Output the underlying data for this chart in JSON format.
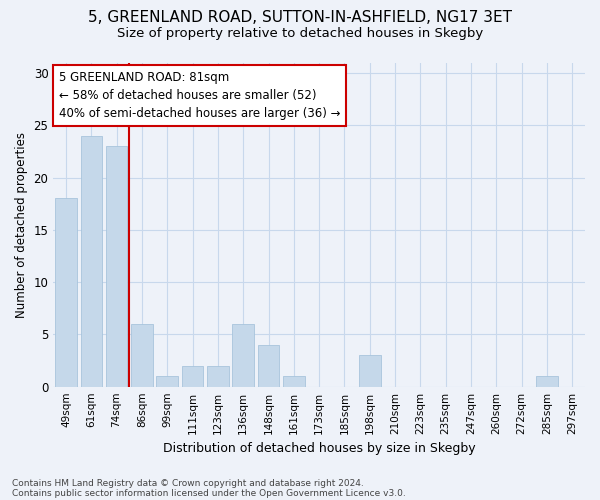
{
  "title_line1": "5, GREENLAND ROAD, SUTTON-IN-ASHFIELD, NG17 3ET",
  "title_line2": "Size of property relative to detached houses in Skegby",
  "xlabel": "Distribution of detached houses by size in Skegby",
  "ylabel": "Number of detached properties",
  "categories": [
    "49sqm",
    "61sqm",
    "74sqm",
    "86sqm",
    "99sqm",
    "111sqm",
    "123sqm",
    "136sqm",
    "148sqm",
    "161sqm",
    "173sqm",
    "185sqm",
    "198sqm",
    "210sqm",
    "223sqm",
    "235sqm",
    "247sqm",
    "260sqm",
    "272sqm",
    "285sqm",
    "297sqm"
  ],
  "values": [
    18,
    24,
    23,
    6,
    1,
    2,
    2,
    6,
    4,
    1,
    0,
    0,
    3,
    0,
    0,
    0,
    0,
    0,
    0,
    1,
    0
  ],
  "bar_color": "#c5d8ea",
  "bar_edge_color": "#a8c4dc",
  "vline_x": 2.5,
  "vline_color": "#cc0000",
  "annotation_line1": "5 GREENLAND ROAD: 81sqm",
  "annotation_line2": "← 58% of detached houses are smaller (52)",
  "annotation_line3": "40% of semi-detached houses are larger (36) →",
  "annotation_box_edgecolor": "#cc0000",
  "annotation_box_facecolor": "#ffffff",
  "ylim": [
    0,
    31
  ],
  "yticks": [
    0,
    5,
    10,
    15,
    20,
    25,
    30
  ],
  "grid_color": "#c8d8ec",
  "background_color": "#eef2f9",
  "plot_bg_color": "#eef2f9",
  "footer_line1": "Contains HM Land Registry data © Crown copyright and database right 2024.",
  "footer_line2": "Contains public sector information licensed under the Open Government Licence v3.0.",
  "footer_fontsize": 6.5,
  "title1_fontsize": 11,
  "title2_fontsize": 9.5,
  "ylabel_fontsize": 8.5,
  "xlabel_fontsize": 9,
  "ytick_fontsize": 8.5,
  "xtick_fontsize": 7.5,
  "annotation_fontsize": 8.5
}
